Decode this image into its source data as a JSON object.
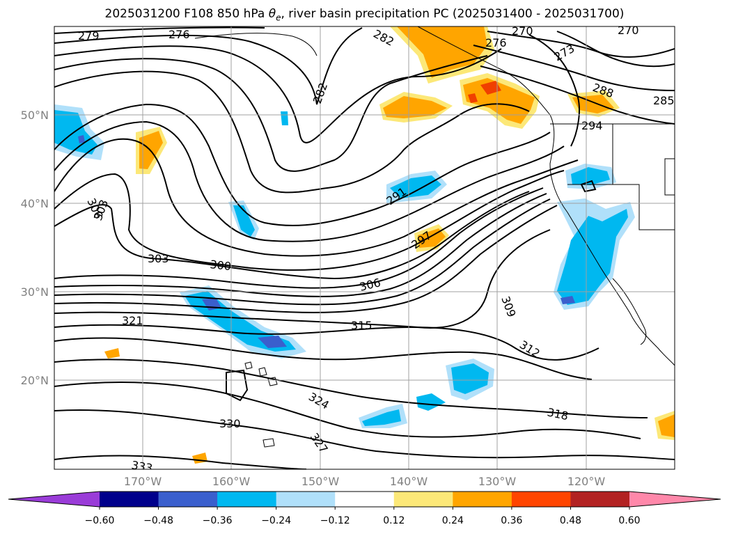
{
  "title_prefix": "2025031200 F108 850 hPa ",
  "title_symbol": "θ",
  "title_subscript": "e",
  "title_suffix": ", river basin precipitation PC (2025031400 - 2025031700)",
  "map": {
    "lat_labels": [
      "50°N",
      "40°N",
      "30°N",
      "20°N"
    ],
    "lon_labels": [
      "170°W",
      "160°W",
      "150°W",
      "140°W",
      "130°W",
      "120°W"
    ],
    "contour_labels": [
      "279",
      "276",
      "282",
      "276",
      "270",
      "270",
      "273",
      "288",
      "285",
      "294",
      "282",
      "291",
      "297",
      "306",
      "303",
      "303",
      "300",
      "306",
      "315",
      "309",
      "312",
      "321",
      "324",
      "318",
      "327",
      "330",
      "333"
    ],
    "colors": {
      "neg_strong": "#4040c0",
      "neg_mid": "#00b8f0",
      "neg_light": "#a8dcf8",
      "pos_light": "#fce878",
      "pos_mid": "#ffa500",
      "pos_strong": "#f04000",
      "ocean": "#ffffff",
      "grid": "#a0a0a0"
    }
  },
  "colorbar": {
    "ticks": [
      "−0.60",
      "−0.48",
      "−0.36",
      "−0.24",
      "−0.12",
      "0.12",
      "0.24",
      "0.36",
      "0.48",
      "0.60"
    ],
    "levels": [
      -0.6,
      -0.48,
      -0.36,
      -0.24,
      -0.12,
      0.12,
      0.24,
      0.36,
      0.48,
      0.6
    ],
    "colors": [
      "#9a3cd8",
      "#00008b",
      "#3a5fcd",
      "#00b8f0",
      "#b0e0fa",
      "#ffffff",
      "#fce878",
      "#ffa500",
      "#ff4500",
      "#b22222",
      "#ff88aa"
    ]
  }
}
